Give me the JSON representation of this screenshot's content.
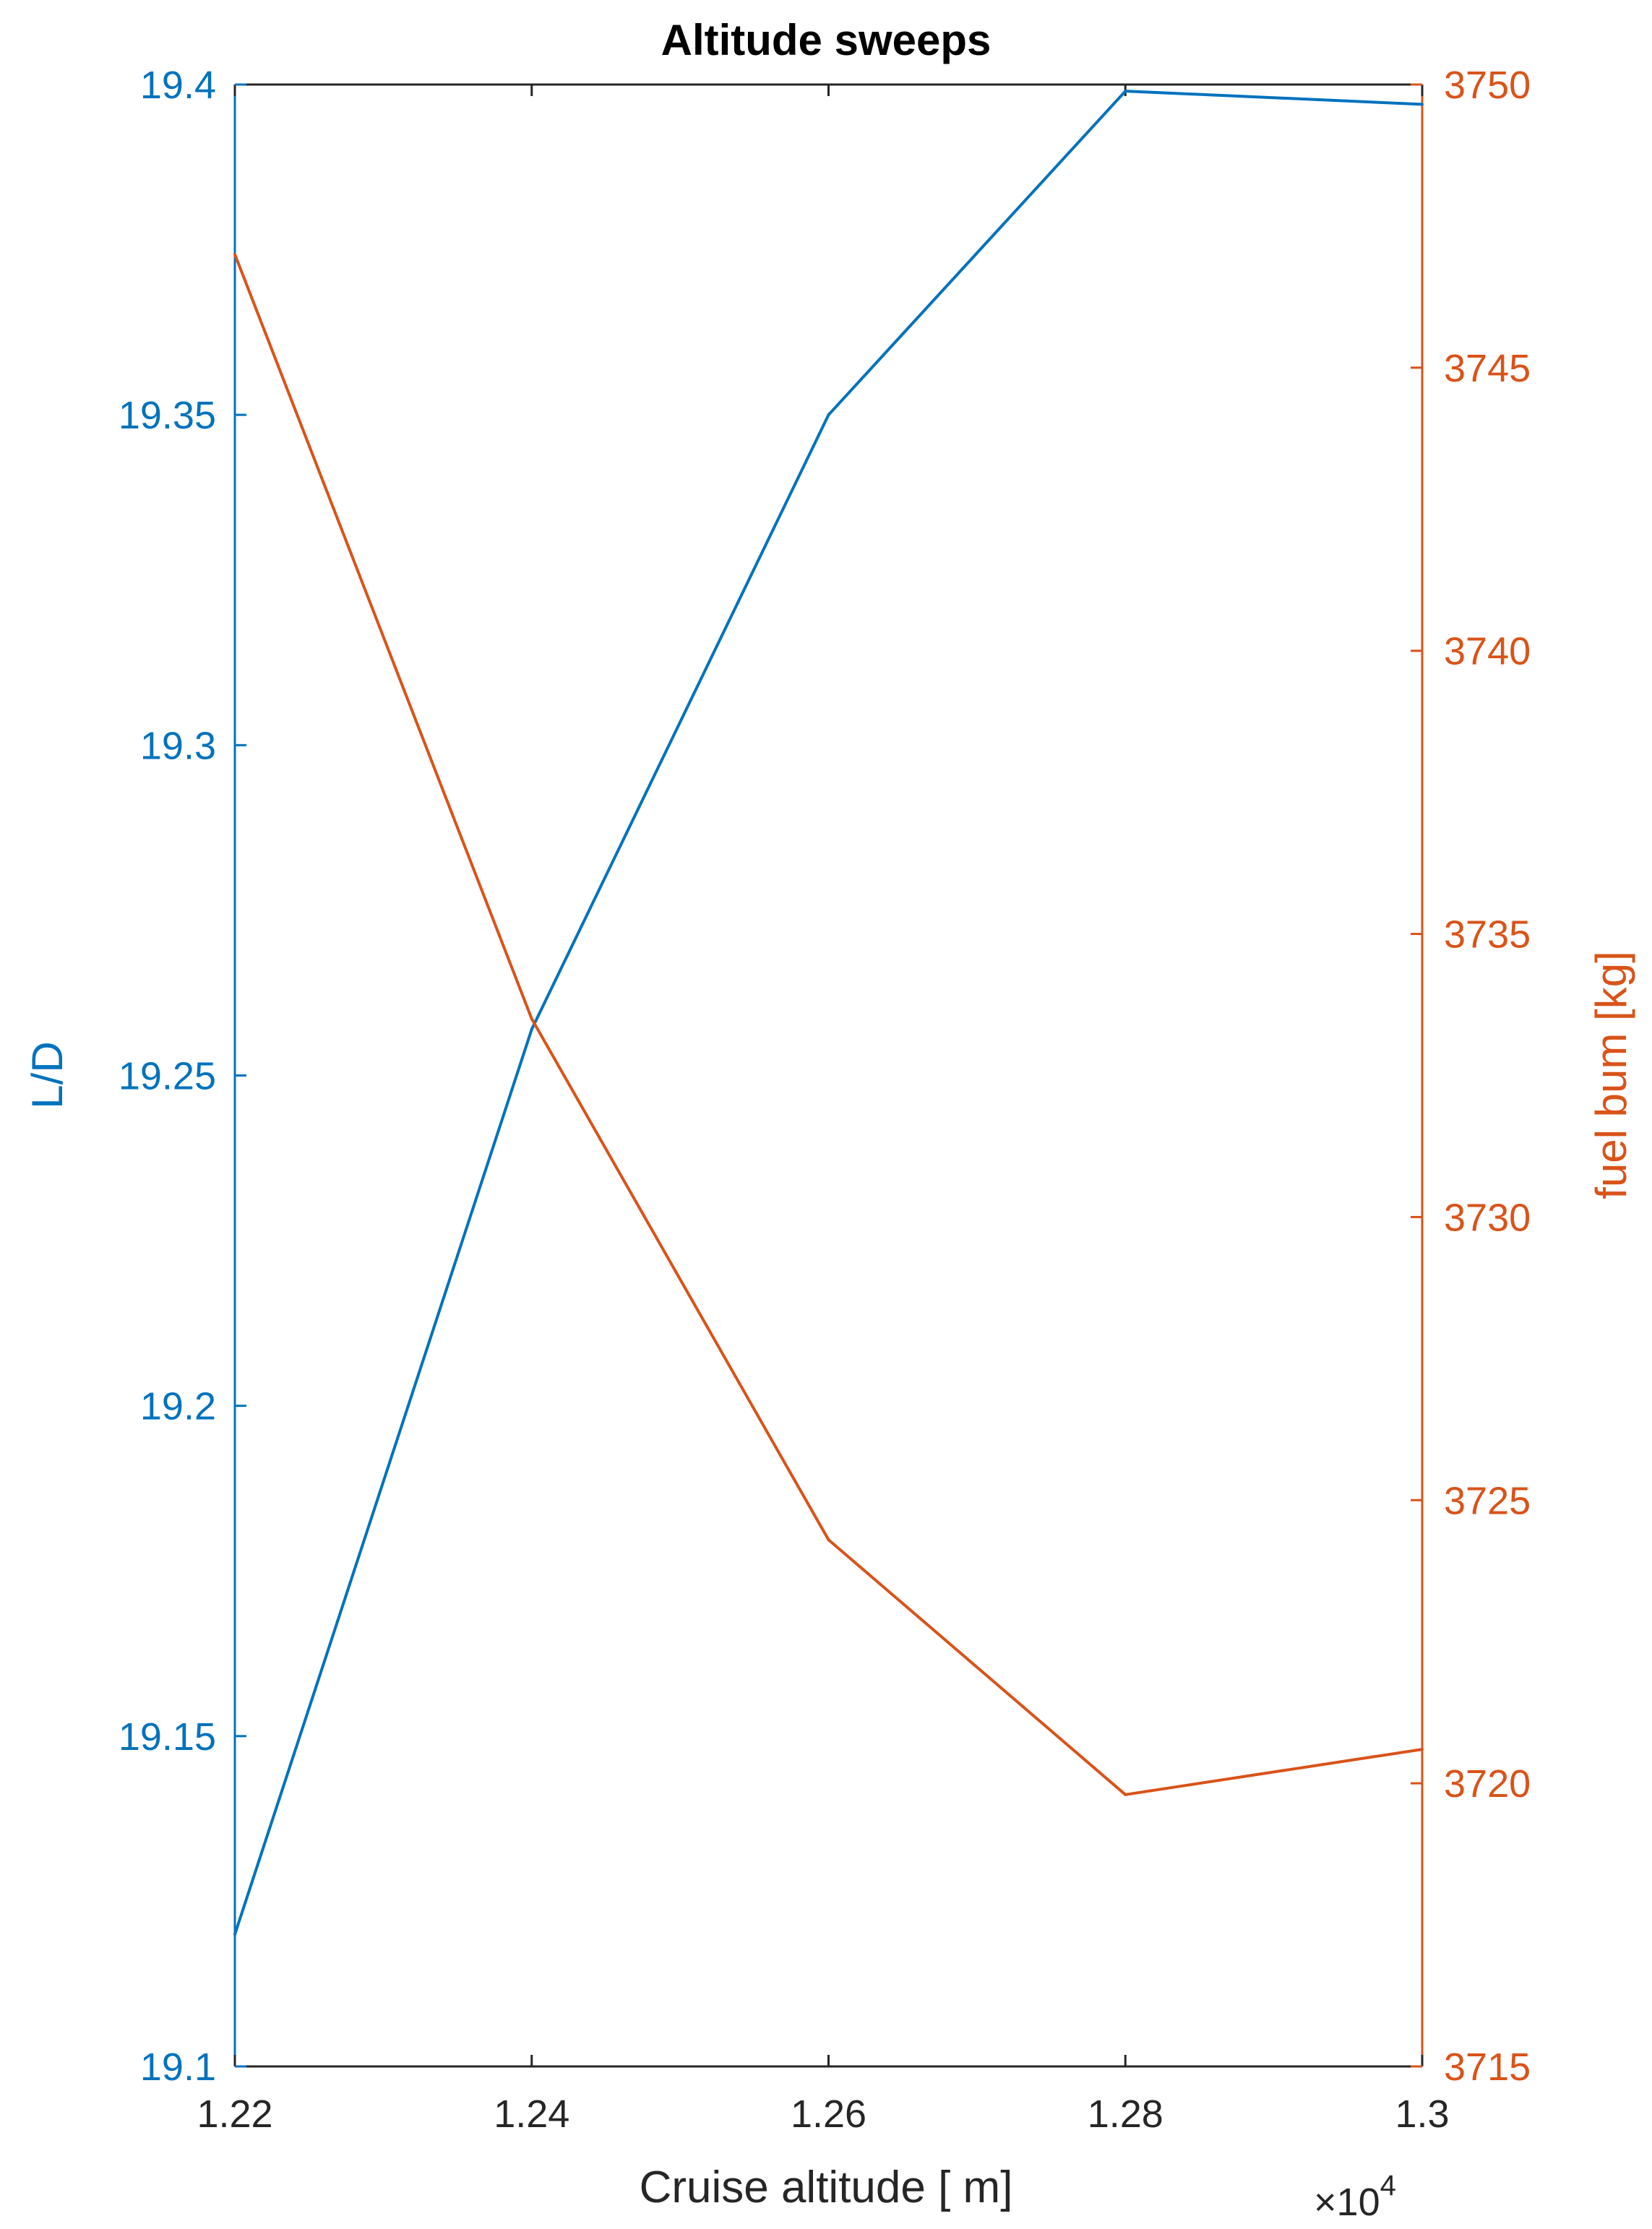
{
  "chart_data": {
    "type": "line",
    "title": "Altitude sweeps",
    "xlabel": "Cruise altitude [  m]",
    "ylabel_left": "L/D",
    "ylabel_right": "fuel bum [kg]",
    "x_multiplier_base": "×10",
    "x_multiplier_exp": "4",
    "xlim": [
      1.22,
      1.3
    ],
    "x_ticks": [
      1.22,
      1.24,
      1.26,
      1.28,
      1.3
    ],
    "x_tick_labels": [
      "1.22",
      "1.24",
      "1.26",
      "1.28",
      "1.3"
    ],
    "ylim_left": [
      19.1,
      19.4
    ],
    "y_ticks_left": [
      19.1,
      19.15,
      19.2,
      19.25,
      19.3,
      19.35,
      19.4
    ],
    "y_tick_labels_left": [
      "19.1",
      "19.15",
      "19.2",
      "19.25",
      "19.3",
      "19.35",
      "19.4"
    ],
    "ylim_right": [
      3715,
      3750
    ],
    "y_ticks_right": [
      3715,
      3720,
      3725,
      3730,
      3735,
      3740,
      3745,
      3750
    ],
    "y_tick_labels_right": [
      "3715",
      "3720",
      "3725",
      "3730",
      "3735",
      "3740",
      "3745",
      "3750"
    ],
    "grid": false,
    "x": [
      1.22,
      1.24,
      1.26,
      1.28,
      1.3
    ],
    "series": [
      {
        "axis": "left",
        "color": "#0072BD",
        "values": [
          19.12,
          19.257,
          19.35,
          19.399,
          19.397
        ]
      },
      {
        "axis": "right",
        "color": "#D95319",
        "values": [
          3747.0,
          3733.5,
          3724.3,
          3719.8,
          3720.6
        ]
      }
    ],
    "colors": {
      "left": "#0072BD",
      "right": "#D95319",
      "axes": "#262626"
    }
  }
}
